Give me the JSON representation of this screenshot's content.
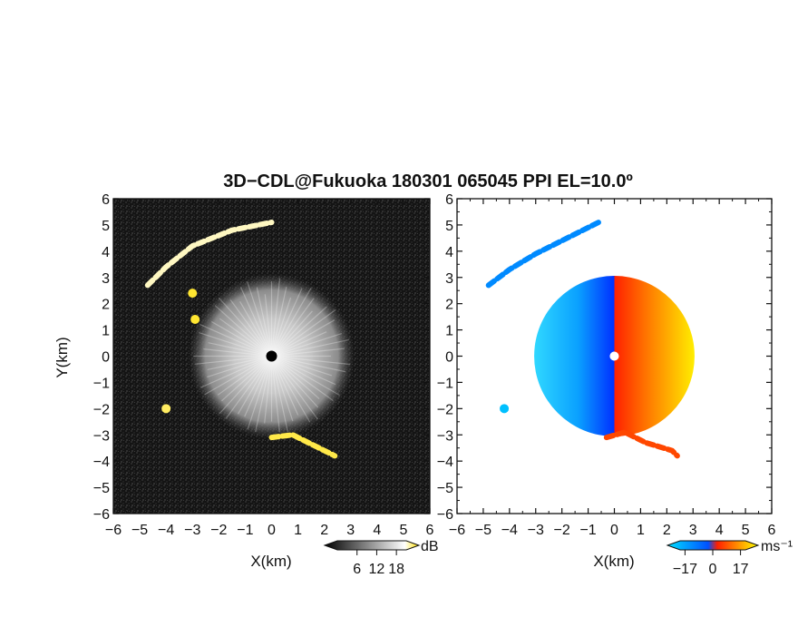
{
  "chart_data": {
    "title": "3D−CDL@Fukuoka 180301 065045 PPI EL=10.0º",
    "type": "heatmap",
    "panels": [
      {
        "name": "reflectivity",
        "xlabel": "X(km)",
        "ylabel": "Y(km)",
        "xlim": [
          -6,
          6
        ],
        "ylim": [
          -6,
          6
        ],
        "x_ticks": [
          "−6",
          "−5",
          "−4",
          "−3",
          "−2",
          "−1",
          "0",
          "1",
          "2",
          "3",
          "4",
          "5",
          "6"
        ],
        "y_ticks": [
          "−6",
          "−5",
          "−4",
          "−3",
          "−2",
          "−1",
          "0",
          "1",
          "2",
          "3",
          "4",
          "5",
          "6"
        ],
        "colorbar": {
          "unit": "dB",
          "tick_labels": [
            "6",
            "12",
            "18"
          ],
          "range": [
            0,
            21
          ],
          "colors": [
            "#000000",
            "#ffffff",
            "#ffe000"
          ]
        },
        "features": [
          {
            "kind": "disk",
            "cx": 0,
            "cy": 0,
            "r": 3.0,
            "value": 11
          },
          {
            "kind": "arc",
            "points": [
              [
                -4.7,
                2.7
              ],
              [
                -4.0,
                3.4
              ],
              [
                -3.0,
                4.2
              ],
              [
                -1.5,
                4.8
              ],
              [
                -0.5,
                5.0
              ],
              [
                0,
                5.1
              ]
            ],
            "value": 13
          },
          {
            "kind": "blob",
            "x": -3.0,
            "y": 2.4,
            "value": 19
          },
          {
            "kind": "blob",
            "x": -2.9,
            "y": 1.4,
            "value": 19
          },
          {
            "kind": "blob",
            "x": -4.0,
            "y": -2.0,
            "value": 17
          },
          {
            "kind": "arc",
            "points": [
              [
                0,
                -3.1
              ],
              [
                0.8,
                -3.0
              ],
              [
                1.6,
                -3.4
              ],
              [
                2.4,
                -3.8
              ]
            ],
            "value": 18
          }
        ]
      },
      {
        "name": "doppler-velocity",
        "xlabel": "X(km)",
        "ylabel": "",
        "xlim": [
          -6,
          6
        ],
        "ylim": [
          -6,
          6
        ],
        "x_ticks": [
          "−6",
          "−5",
          "−4",
          "−3",
          "−2",
          "−1",
          "0",
          "1",
          "2",
          "3",
          "4",
          "5",
          "6"
        ],
        "y_ticks": [
          "−6",
          "−5",
          "−4",
          "−3",
          "−2",
          "−1",
          "0",
          "1",
          "2",
          "3",
          "4",
          "5",
          "6"
        ],
        "colorbar": {
          "unit": "ms⁻¹",
          "tick_labels": [
            "−17",
            "0",
            "17"
          ],
          "range": [
            -20,
            20
          ],
          "colors": [
            "#00e0ff",
            "#0050ff",
            "#ff2000",
            "#ffff00"
          ]
        },
        "features": [
          {
            "kind": "half-disk",
            "side": "west",
            "cx": 0,
            "cy": 0,
            "r": 3.0,
            "value": -10
          },
          {
            "kind": "half-disk",
            "side": "east",
            "cx": 0,
            "cy": 0,
            "r": 3.0,
            "value": 10
          },
          {
            "kind": "arc",
            "points": [
              [
                -4.8,
                2.7
              ],
              [
                -4.0,
                3.3
              ],
              [
                -3.0,
                3.9
              ],
              [
                -2.0,
                4.4
              ],
              [
                -1.0,
                4.9
              ],
              [
                -0.6,
                5.1
              ]
            ],
            "value": -12
          },
          {
            "kind": "arc",
            "points": [
              [
                -0.3,
                -3.1
              ],
              [
                0.4,
                -2.9
              ],
              [
                1.2,
                -3.3
              ],
              [
                2.2,
                -3.6
              ],
              [
                2.4,
                -3.8
              ]
            ],
            "value": 9
          },
          {
            "kind": "blob",
            "x": -4.2,
            "y": -2.0,
            "value": -17
          }
        ]
      }
    ]
  }
}
